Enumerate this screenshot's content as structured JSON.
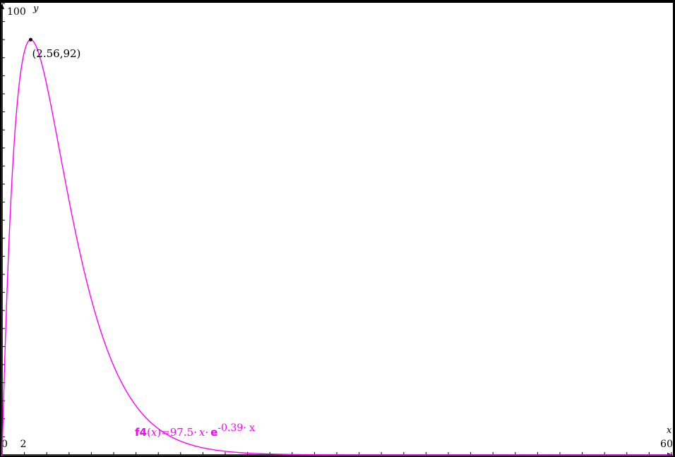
{
  "chart_data": {
    "type": "line",
    "title": "",
    "xlabel": "x",
    "ylabel": "y",
    "xlim": [
      0,
      60
    ],
    "ylim": [
      0,
      100
    ],
    "x_tick_labels": [
      "0",
      "2",
      "60"
    ],
    "y_tick_labels": [
      "100"
    ],
    "series": [
      {
        "name": "f4",
        "color": "#ff00ff",
        "equation": {
          "a": 97.5,
          "b": -0.39
        },
        "x_samples": [
          0,
          0.5,
          1,
          1.5,
          2,
          2.56,
          3,
          4,
          5,
          6,
          8,
          10,
          12,
          15,
          20,
          25,
          30,
          40,
          50,
          60
        ]
      }
    ],
    "annotations": {
      "max_point": {
        "x": 2.56,
        "y": 92,
        "label": "(2.56,92)"
      },
      "function_label": {
        "name": "f4",
        "lhs_var": "x",
        "eq_rhs_coef": "=97.5",
        "mult_dot": "·",
        "var_x": "x",
        "e_symbol": "e",
        "exponent": "-0.39· x"
      }
    },
    "grid": false,
    "legend": "none"
  }
}
